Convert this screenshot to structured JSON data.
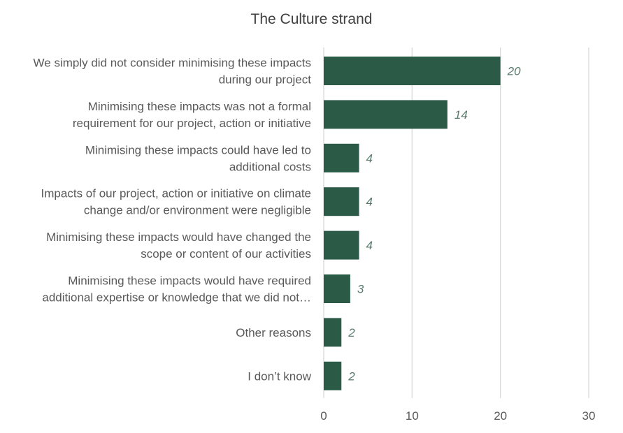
{
  "chart_data": {
    "type": "bar",
    "orientation": "horizontal",
    "title": "The Culture strand",
    "categories": [
      [
        "We simply did not consider minimising these impacts",
        "during our project"
      ],
      [
        "Minimising these impacts was not a formal",
        "requirement for our project, action or initiative"
      ],
      [
        "Minimising these impacts could have led to",
        "additional costs"
      ],
      [
        "Impacts of our project, action or initiative on climate",
        "change and/or environment were negligible"
      ],
      [
        "Minimising these impacts would have changed the",
        "scope or content of our activities"
      ],
      [
        "Minimising these impacts would have required",
        "additional expertise or knowledge that we did not…"
      ],
      [
        "Other reasons"
      ],
      [
        "I don’t know"
      ]
    ],
    "values": [
      20,
      14,
      4,
      4,
      4,
      3,
      2,
      2
    ],
    "data_labels": [
      "20",
      "14",
      "4",
      "4",
      "4",
      "3",
      "2",
      "2"
    ],
    "xlim": [
      0,
      30
    ],
    "x_ticks": [
      0,
      10,
      20,
      30
    ],
    "x_tick_labels": [
      "0",
      "10",
      "20",
      "30"
    ],
    "grid": "vertical",
    "legend": "none",
    "bar_color": "#2b5a47"
  }
}
